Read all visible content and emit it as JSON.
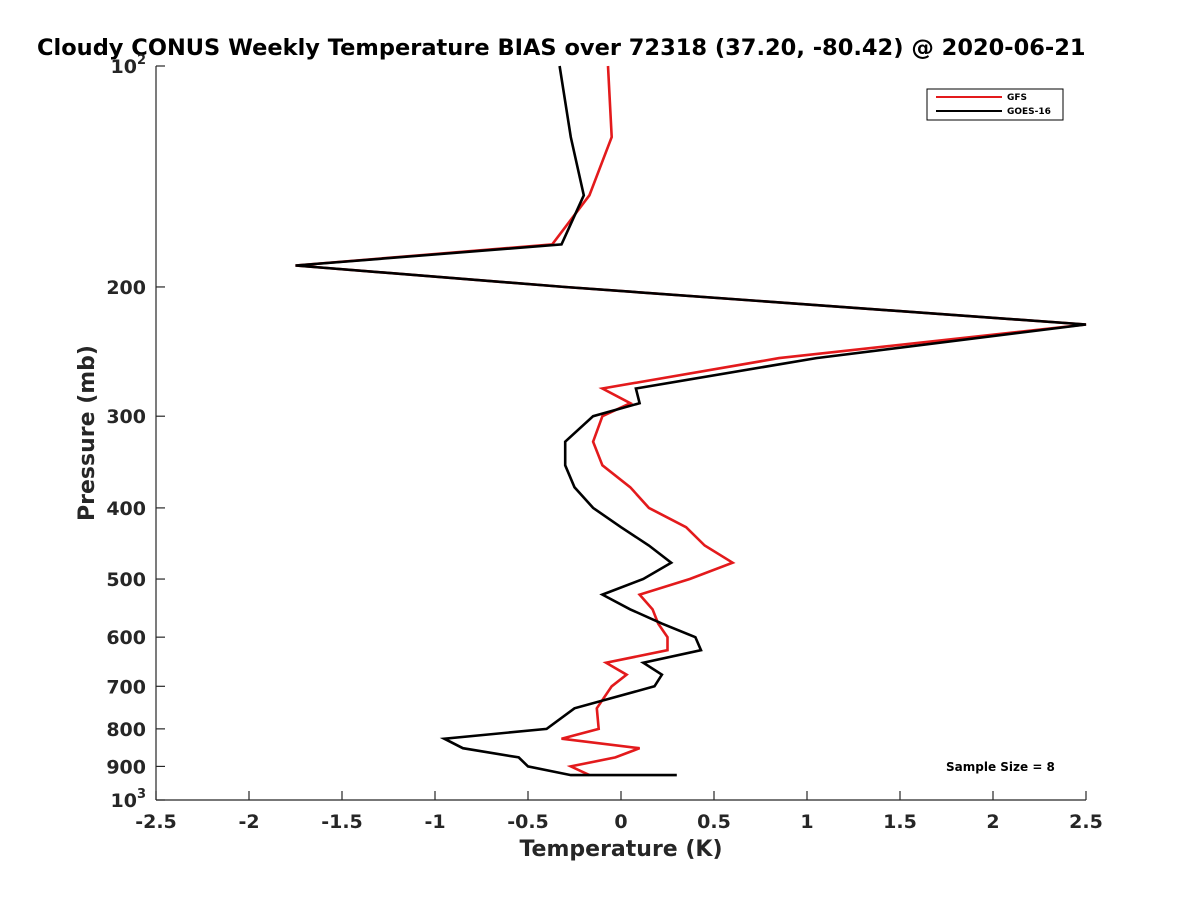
{
  "chart_data": {
    "type": "line",
    "title": "Cloudy CONUS Weekly Temperature BIAS over 72318 (37.20, -80.42) @ 2020-06-21",
    "xlabel": "Temperature (K)",
    "ylabel": "Pressure (mb)",
    "xlim": [
      -2.5,
      2.5
    ],
    "ylim": [
      100,
      1000
    ],
    "y_scale": "log",
    "y_reversed": true,
    "grid": false,
    "legend_position": "top-right",
    "x_ticks": [
      "-2.5",
      "-2",
      "-1.5",
      "-1",
      "-0.5",
      "0",
      "0.5",
      "1",
      "1.5",
      "2",
      "2.5"
    ],
    "y_ticks": [
      {
        "value": 100,
        "base": "10",
        "exp": "2"
      },
      {
        "value": 200,
        "label": "200"
      },
      {
        "value": 300,
        "label": "300"
      },
      {
        "value": 400,
        "label": "400"
      },
      {
        "value": 500,
        "label": "500"
      },
      {
        "value": 600,
        "label": "600"
      },
      {
        "value": 700,
        "label": "700"
      },
      {
        "value": 800,
        "label": "800"
      },
      {
        "value": 900,
        "label": "900"
      },
      {
        "value": 1000,
        "base": "10",
        "exp": "3"
      }
    ],
    "series": [
      {
        "name": "GFS",
        "color": "#e31a1c",
        "points": [
          [
            -0.07,
            100
          ],
          [
            -0.05,
            125
          ],
          [
            -0.17,
            150
          ],
          [
            -0.37,
            175
          ],
          [
            -1.75,
            187
          ],
          [
            -0.3,
            200
          ],
          [
            2.5,
            225
          ],
          [
            0.85,
            250
          ],
          [
            -0.1,
            275
          ],
          [
            0.05,
            288
          ],
          [
            -0.1,
            300
          ],
          [
            -0.15,
            325
          ],
          [
            -0.1,
            350
          ],
          [
            0.05,
            375
          ],
          [
            0.15,
            400
          ],
          [
            0.35,
            425
          ],
          [
            0.45,
            450
          ],
          [
            0.6,
            475
          ],
          [
            0.37,
            500
          ],
          [
            0.1,
            525
          ],
          [
            0.17,
            550
          ],
          [
            0.2,
            575
          ],
          [
            0.25,
            600
          ],
          [
            0.25,
            625
          ],
          [
            -0.08,
            650
          ],
          [
            0.03,
            675
          ],
          [
            -0.05,
            700
          ],
          [
            -0.13,
            750
          ],
          [
            -0.12,
            800
          ],
          [
            -0.32,
            825
          ],
          [
            0.1,
            850
          ],
          [
            -0.03,
            875
          ],
          [
            -0.27,
            900
          ],
          [
            -0.17,
            925
          ]
        ]
      },
      {
        "name": "GOES-16",
        "color": "#000000",
        "points": [
          [
            -0.33,
            100
          ],
          [
            -0.27,
            125
          ],
          [
            -0.2,
            150
          ],
          [
            -0.32,
            175
          ],
          [
            -1.75,
            187
          ],
          [
            -0.3,
            200
          ],
          [
            2.5,
            225
          ],
          [
            1.05,
            250
          ],
          [
            0.08,
            275
          ],
          [
            0.1,
            288
          ],
          [
            -0.15,
            300
          ],
          [
            -0.3,
            325
          ],
          [
            -0.3,
            350
          ],
          [
            -0.25,
            375
          ],
          [
            -0.15,
            400
          ],
          [
            0,
            425
          ],
          [
            0.15,
            450
          ],
          [
            0.27,
            475
          ],
          [
            0.12,
            500
          ],
          [
            -0.1,
            525
          ],
          [
            0.05,
            550
          ],
          [
            0.22,
            575
          ],
          [
            0.4,
            600
          ],
          [
            0.43,
            625
          ],
          [
            0.12,
            650
          ],
          [
            0.22,
            675
          ],
          [
            0.18,
            700
          ],
          [
            -0.25,
            750
          ],
          [
            -0.4,
            800
          ],
          [
            -0.95,
            825
          ],
          [
            -0.85,
            850
          ],
          [
            -0.55,
            875
          ],
          [
            -0.5,
            900
          ],
          [
            -0.27,
            925
          ],
          [
            0.3,
            925
          ]
        ]
      }
    ],
    "annotations": [
      {
        "text": "Sample Size = 8"
      }
    ]
  }
}
